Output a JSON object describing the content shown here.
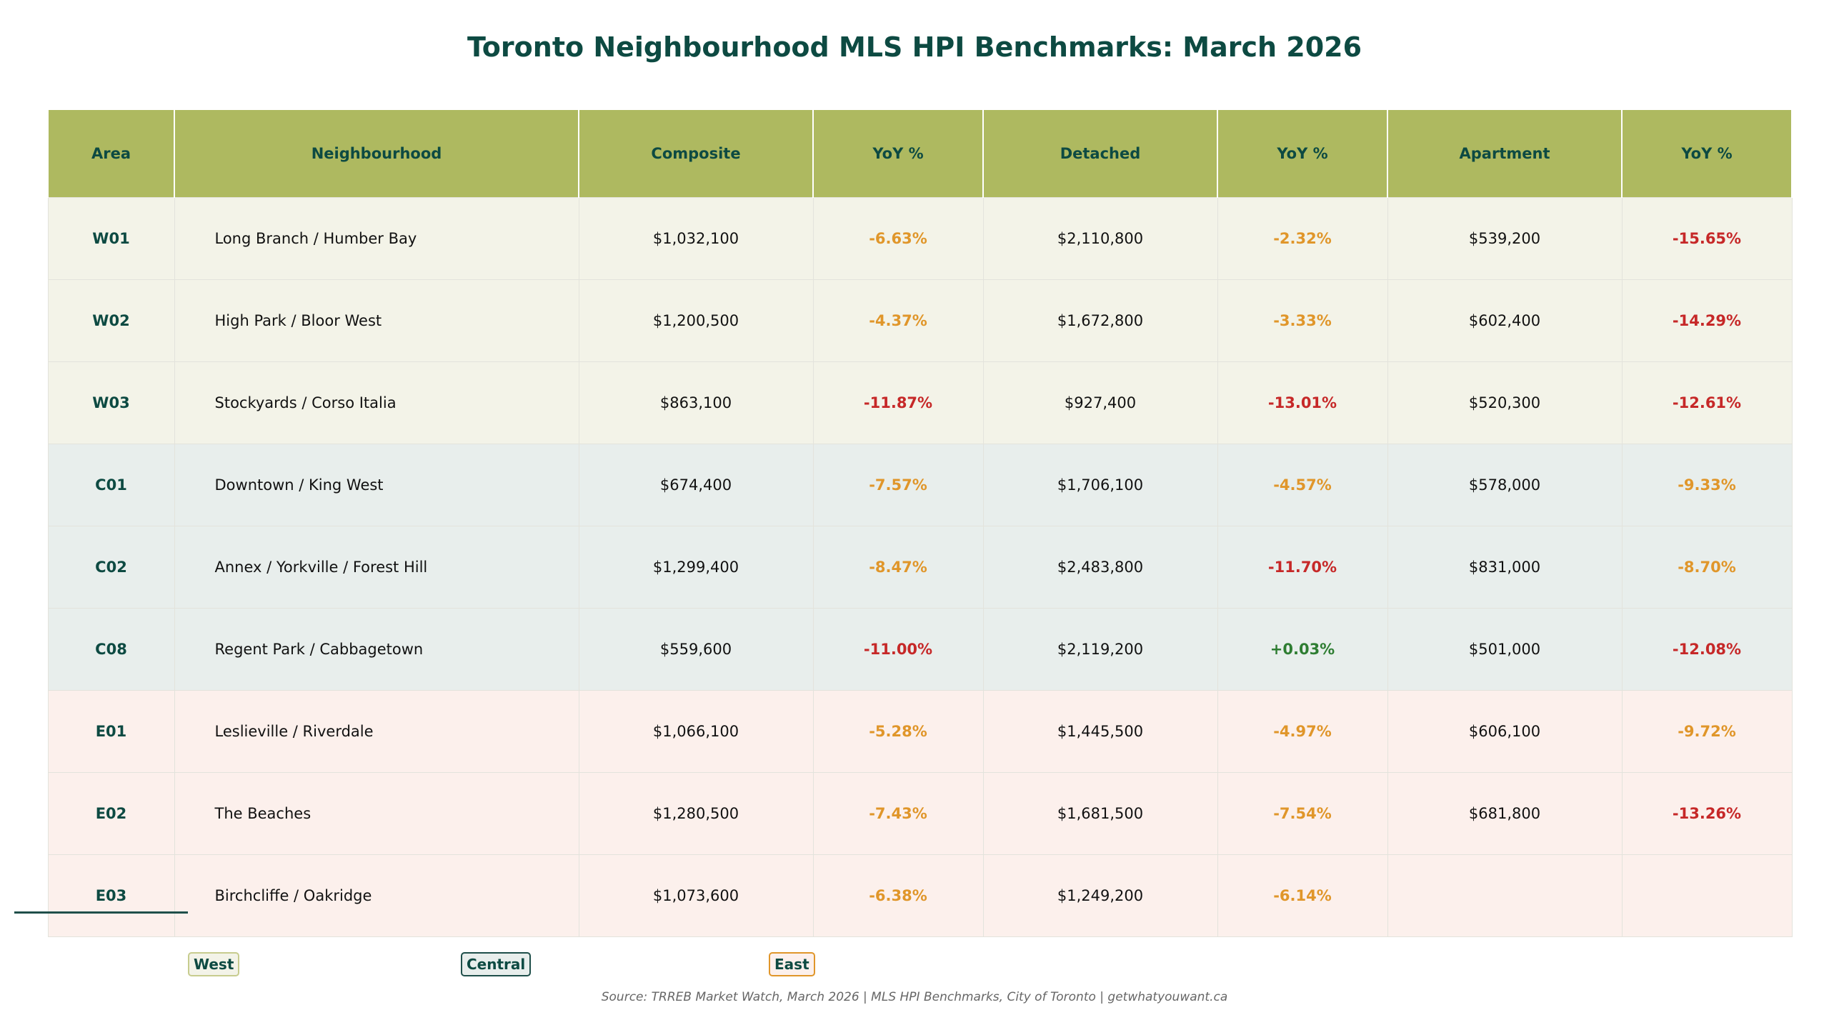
{
  "title": "Toronto Neighbourhood MLS HPI Benchmarks: March 2026",
  "headers": [
    "Area",
    "Neighbourhood",
    "Composite",
    "YoY %",
    "Detached",
    "YoY %",
    "Apartment",
    "YoY %"
  ],
  "rows": [
    {
      "region": "west",
      "area": "W01",
      "name": "Long Branch / Humber Bay",
      "comp": "$1,032,100",
      "comp_yoy": "-6.63%",
      "comp_c": "orange",
      "det": "$2,110,800",
      "det_yoy": "-2.32%",
      "det_c": "orange",
      "apt": "$539,200",
      "apt_yoy": "-15.65%",
      "apt_c": "red"
    },
    {
      "region": "west",
      "area": "W02",
      "name": "High Park / Bloor West",
      "comp": "$1,200,500",
      "comp_yoy": "-4.37%",
      "comp_c": "orange",
      "det": "$1,672,800",
      "det_yoy": "-3.33%",
      "det_c": "orange",
      "apt": "$602,400",
      "apt_yoy": "-14.29%",
      "apt_c": "red"
    },
    {
      "region": "west",
      "area": "W03",
      "name": "Stockyards / Corso Italia",
      "comp": "$863,100",
      "comp_yoy": "-11.87%",
      "comp_c": "red",
      "det": "$927,400",
      "det_yoy": "-13.01%",
      "det_c": "red",
      "apt": "$520,300",
      "apt_yoy": "-12.61%",
      "apt_c": "red"
    },
    {
      "region": "central",
      "area": "C01",
      "name": "Downtown / King West",
      "comp": "$674,400",
      "comp_yoy": "-7.57%",
      "comp_c": "orange",
      "det": "$1,706,100",
      "det_yoy": "-4.57%",
      "det_c": "orange",
      "apt": "$578,000",
      "apt_yoy": "-9.33%",
      "apt_c": "orange"
    },
    {
      "region": "central",
      "area": "C02",
      "name": "Annex / Yorkville / Forest Hill",
      "comp": "$1,299,400",
      "comp_yoy": "-8.47%",
      "comp_c": "orange",
      "det": "$2,483,800",
      "det_yoy": "-11.70%",
      "det_c": "red",
      "apt": "$831,000",
      "apt_yoy": "-8.70%",
      "apt_c": "orange"
    },
    {
      "region": "central",
      "area": "C08",
      "name": "Regent Park / Cabbagetown",
      "comp": "$559,600",
      "comp_yoy": "-11.00%",
      "comp_c": "red",
      "det": "$2,119,200",
      "det_yoy": "+0.03%",
      "det_c": "green",
      "apt": "$501,000",
      "apt_yoy": "-12.08%",
      "apt_c": "red"
    },
    {
      "region": "east",
      "area": "E01",
      "name": "Leslieville / Riverdale",
      "comp": "$1,066,100",
      "comp_yoy": "-5.28%",
      "comp_c": "orange",
      "det": "$1,445,500",
      "det_yoy": "-4.97%",
      "det_c": "orange",
      "apt": "$606,100",
      "apt_yoy": "-9.72%",
      "apt_c": "orange"
    },
    {
      "region": "east",
      "area": "E02",
      "name": "The Beaches",
      "comp": "$1,280,500",
      "comp_yoy": "-7.43%",
      "comp_c": "orange",
      "det": "$1,681,500",
      "det_yoy": "-7.54%",
      "det_c": "orange",
      "apt": "$681,800",
      "apt_yoy": "-13.26%",
      "apt_c": "red"
    },
    {
      "region": "east",
      "area": "E03",
      "name": "Birchcliffe / Oakridge",
      "comp": "$1,073,600",
      "comp_yoy": "-6.38%",
      "comp_c": "orange",
      "det": "$1,249,200",
      "det_yoy": "-6.14%",
      "det_c": "orange",
      "apt": "",
      "apt_yoy": "",
      "apt_c": "orange"
    }
  ],
  "legend": {
    "west": "West",
    "central": "Central",
    "east": "East"
  },
  "source": "Source: TRREB Market Watch, March 2026 | MLS HPI Benchmarks, City of Toronto  |  getwhatyouwant.ca",
  "colors": {
    "header": "#aeb960",
    "text": "#0d4a42",
    "orange": "#e0962a",
    "red": "#c62828",
    "green": "#2e7d32"
  }
}
